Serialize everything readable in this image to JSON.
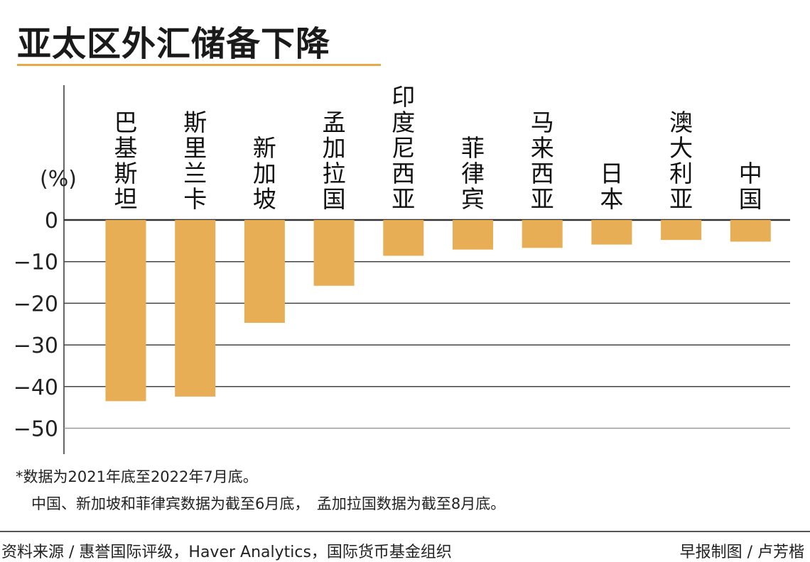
{
  "title": "亚太区外汇储备下降",
  "chart_data": {
    "type": "bar",
    "ylabel": "(%)",
    "categories": [
      "巴基斯坦",
      "斯里兰卡",
      "新加坡",
      "孟加拉国",
      "印度尼西亚",
      "菲律宾",
      "马来西亚",
      "日本",
      "澳大利亚",
      "中国"
    ],
    "values": [
      -43.5,
      -42.4,
      -24.7,
      -15.8,
      -8.6,
      -7.1,
      -6.7,
      -5.9,
      -4.8,
      -5.2
    ],
    "ylim": [
      -50,
      0
    ],
    "yticks": [
      0,
      -10,
      -20,
      -30,
      -40,
      -50
    ],
    "ytick_labels": [
      "0",
      "−10",
      "−20",
      "−30",
      "−40",
      "−50"
    ],
    "grid": true,
    "bar_color": "#e8ae56",
    "accent_color": "#e8a94a"
  },
  "notes": {
    "line1": "*数据为2021年底至2022年7月底。",
    "line2": "中国、新加坡和菲律宾数据为截至6月底，　孟加拉国数据为截至8月底。"
  },
  "source": "资料来源 / 惠誉国际评级，Haver Analytics，国际货币基金组织",
  "credit": "早报制图 / 卢芳楷"
}
